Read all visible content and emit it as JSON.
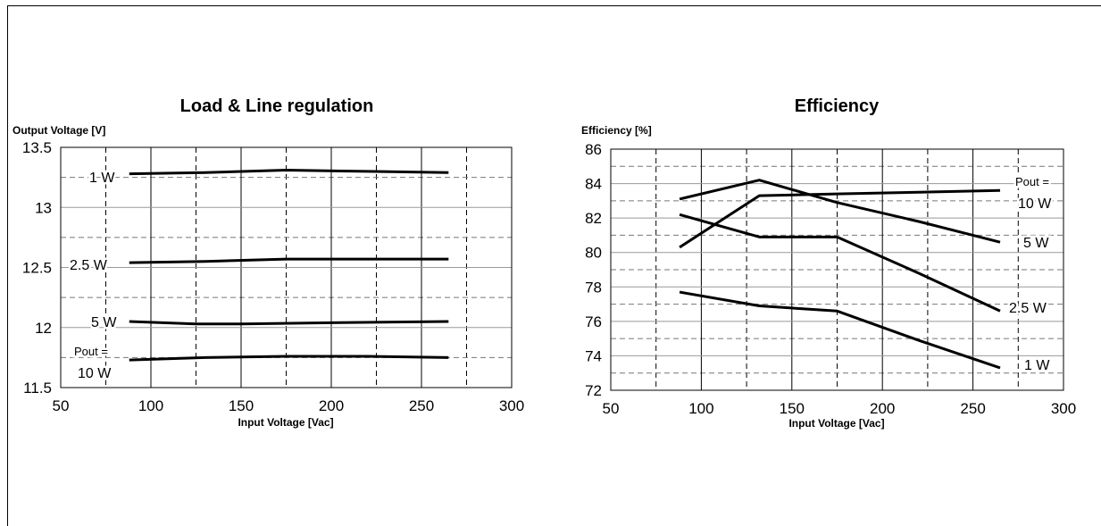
{
  "chart_data": [
    {
      "type": "line",
      "title": "Load & Line regulation",
      "ylabel": "Output Voltage [V]",
      "xlabel": "Input Voltage [Vac]",
      "xlim": [
        50,
        300
      ],
      "ylim": [
        11.5,
        13.5
      ],
      "xticks": [
        "50",
        "100",
        "150",
        "200",
        "250",
        "300"
      ],
      "yticks": [
        "11.5",
        "12",
        "12.5",
        "13",
        "13.5"
      ],
      "x_minor_dashed": [
        75,
        125,
        175,
        225,
        275
      ],
      "y_minor_dashed": [
        11.75,
        12.25,
        12.75,
        13.25
      ],
      "grid": true,
      "series": [
        {
          "label_lines": [
            "1 W"
          ],
          "x": [
            88,
            130,
            175,
            220,
            265
          ],
          "values": [
            13.28,
            13.29,
            13.31,
            13.3,
            13.29
          ]
        },
        {
          "label_lines": [
            "2.5 W"
          ],
          "x": [
            88,
            130,
            175,
            220,
            265
          ],
          "values": [
            12.54,
            12.55,
            12.57,
            12.57,
            12.57
          ]
        },
        {
          "label_lines": [
            "5 W"
          ],
          "x": [
            88,
            125,
            150,
            200,
            265
          ],
          "values": [
            12.05,
            12.03,
            12.03,
            12.04,
            12.05
          ]
        },
        {
          "label_lines": [
            "Pout =",
            "10 W"
          ],
          "x": [
            88,
            130,
            175,
            220,
            265
          ],
          "values": [
            11.73,
            11.75,
            11.76,
            11.76,
            11.75
          ]
        }
      ]
    },
    {
      "type": "line",
      "title": "Efficiency",
      "ylabel": "Efficiency [%]",
      "xlabel": "Input Voltage [Vac]",
      "xlim": [
        50,
        300
      ],
      "ylim": [
        72,
        86
      ],
      "xticks": [
        "50",
        "100",
        "150",
        "200",
        "250",
        "300"
      ],
      "yticks": [
        "72",
        "74",
        "76",
        "78",
        "80",
        "82",
        "84",
        "86"
      ],
      "x_minor_dashed": [
        75,
        125,
        175,
        225,
        275
      ],
      "y_minor_dashed": [
        73,
        75,
        77,
        79,
        81,
        83,
        85
      ],
      "grid": true,
      "series": [
        {
          "label_lines": [
            "Pout =",
            "10 W"
          ],
          "x": [
            88,
            132,
            175,
            220,
            265
          ],
          "values": [
            80.3,
            83.3,
            83.4,
            83.5,
            83.6
          ]
        },
        {
          "label_lines": [
            "5 W"
          ],
          "x": [
            88,
            132,
            175,
            220,
            265
          ],
          "values": [
            83.1,
            84.2,
            82.9,
            81.8,
            80.6
          ]
        },
        {
          "label_lines": [
            "2.5 W"
          ],
          "x": [
            88,
            132,
            175,
            220,
            265
          ],
          "values": [
            82.2,
            80.9,
            80.9,
            78.8,
            76.6
          ]
        },
        {
          "label_lines": [
            "1 W"
          ],
          "x": [
            88,
            132,
            175,
            220,
            265
          ],
          "values": [
            77.7,
            76.9,
            76.6,
            74.9,
            73.3
          ]
        }
      ]
    }
  ]
}
